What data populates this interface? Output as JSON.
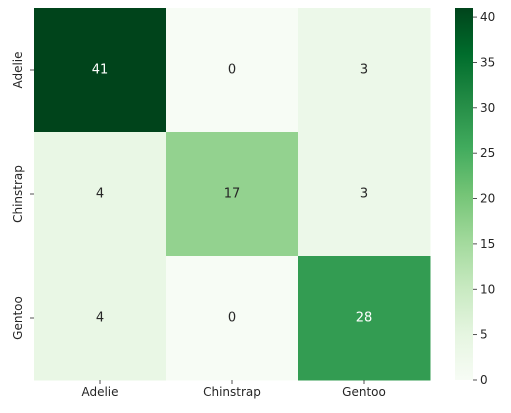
{
  "chart_data": {
    "type": "heatmap",
    "title": "",
    "xlabel": "",
    "ylabel": "",
    "x_categories": [
      "Adelie",
      "Chinstrap",
      "Gentoo"
    ],
    "y_categories": [
      "Adelie",
      "Chinstrap",
      "Gentoo"
    ],
    "values": [
      [
        41,
        0,
        3
      ],
      [
        4,
        17,
        3
      ],
      [
        4,
        0,
        28
      ]
    ],
    "colorbar": {
      "min": 0,
      "max": 41,
      "ticks": [
        0,
        5,
        10,
        15,
        20,
        25,
        30,
        35,
        40
      ]
    },
    "colormap": "Greens",
    "colors": {
      "low": "#f7fcf5",
      "high": "#00441b",
      "text_dark_bg": "#ffffff",
      "text_light_bg": "#262626"
    }
  }
}
